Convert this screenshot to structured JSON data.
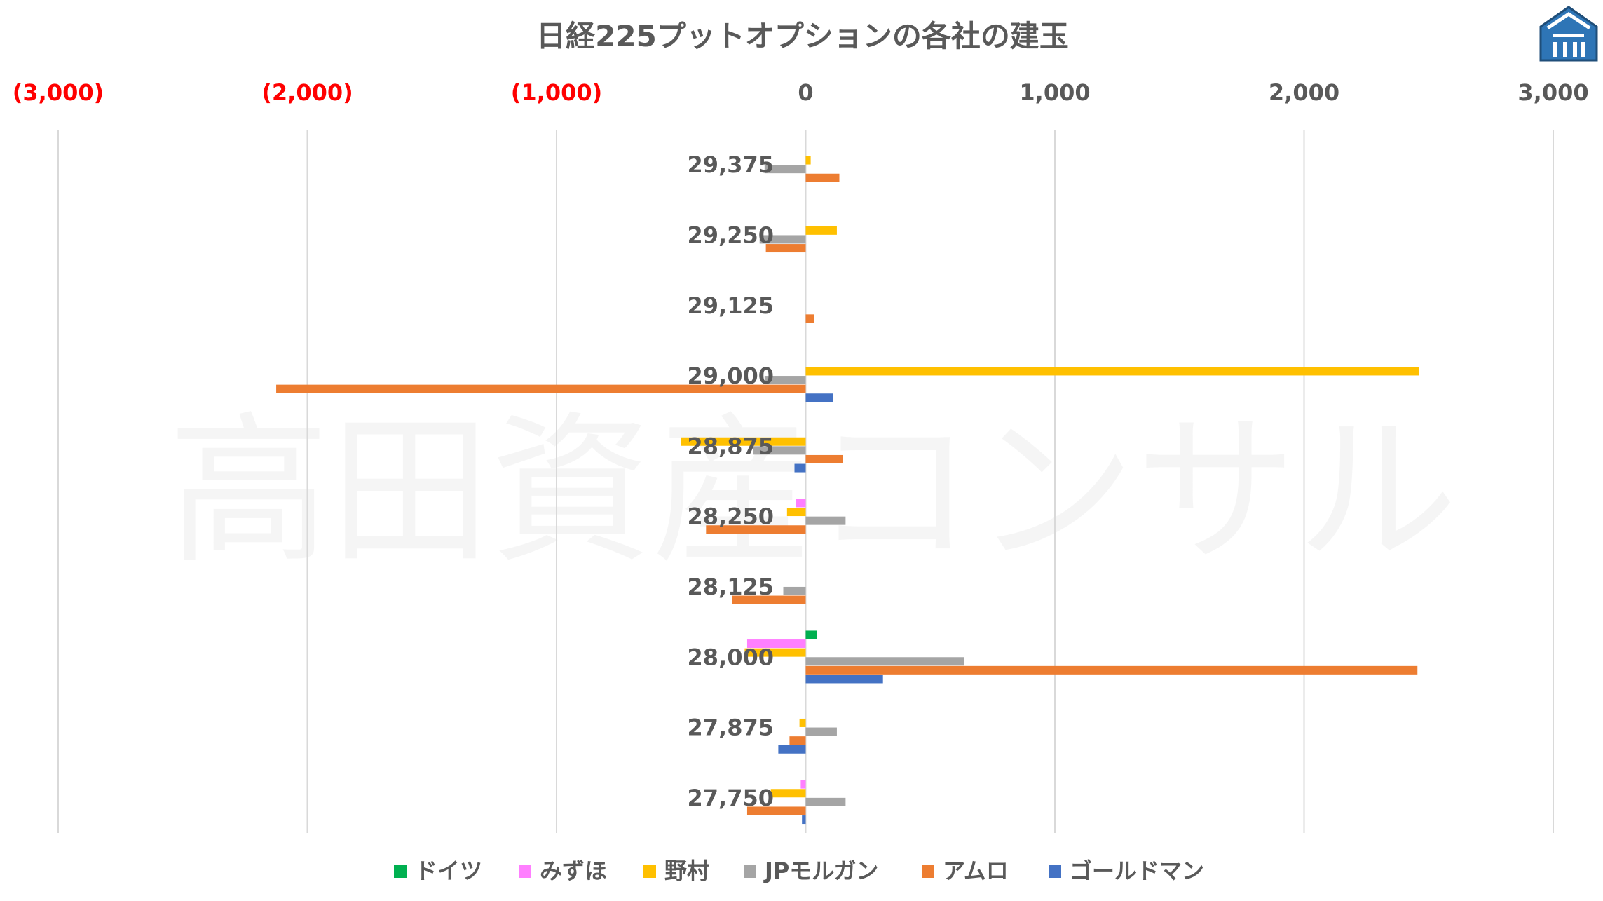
{
  "watermark": "高田資産コンサル",
  "logo": {
    "icon": "shield-house-logo-icon",
    "color": "#2e75b6"
  },
  "chart_data": {
    "type": "bar",
    "orientation": "horizontal-grouped",
    "title": "日経225プットオプションの各社の建玉",
    "xlim": [
      -3000,
      3000
    ],
    "grid": true,
    "legend_position": "bottom",
    "x_ticks": [
      {
        "value": -3000,
        "label": "(3,000)",
        "color": "#ff0000"
      },
      {
        "value": -2000,
        "label": "(2,000)",
        "color": "#ff0000"
      },
      {
        "value": -1000,
        "label": "(1,000)",
        "color": "#ff0000"
      },
      {
        "value": 0,
        "label": "0",
        "color": "#595959"
      },
      {
        "value": 1000,
        "label": "1,000",
        "color": "#595959"
      },
      {
        "value": 2000,
        "label": "2,000",
        "color": "#595959"
      },
      {
        "value": 3000,
        "label": "3,000",
        "color": "#595959"
      }
    ],
    "categories": [
      "29,375",
      "29,250",
      "29,125",
      "29,000",
      "28,875",
      "28,250",
      "28,125",
      "28,000",
      "27,875",
      "27,750"
    ],
    "series": [
      {
        "name": "ドイツ",
        "color": "#00b050",
        "values": [
          0,
          0,
          0,
          0,
          0,
          0,
          0,
          45,
          0,
          0
        ]
      },
      {
        "name": "みずほ",
        "color": "#ff7fff",
        "values": [
          0,
          0,
          0,
          0,
          0,
          -40,
          0,
          -235,
          0,
          -20
        ]
      },
      {
        "name": "野村",
        "color": "#ffc000",
        "values": [
          20,
          125,
          0,
          2460,
          -500,
          -75,
          0,
          -245,
          -25,
          -140
        ]
      },
      {
        "name": "JPモルガン",
        "color": "#a5a5a5",
        "values": [
          -165,
          -185,
          0,
          -165,
          -210,
          160,
          -90,
          635,
          125,
          160
        ]
      },
      {
        "name": "アムロ",
        "color": "#ed7d31",
        "values": [
          135,
          -160,
          35,
          -2125,
          150,
          -400,
          -295,
          2455,
          -65,
          -235
        ]
      },
      {
        "name": "ゴールドマン",
        "color": "#4472c4",
        "values": [
          0,
          0,
          0,
          110,
          -45,
          0,
          0,
          310,
          -110,
          -15
        ]
      }
    ]
  }
}
